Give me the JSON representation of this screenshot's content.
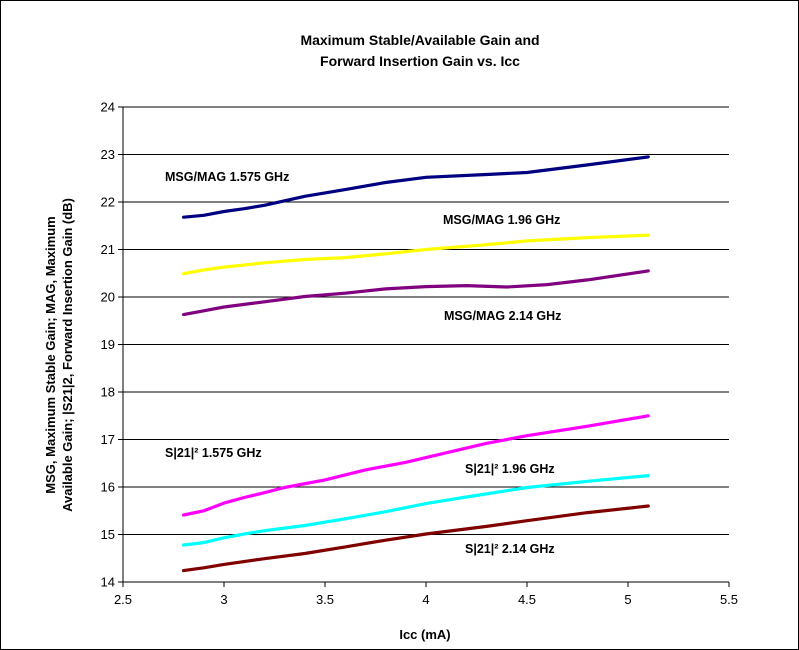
{
  "chart_data": {
    "type": "line",
    "title_lines": [
      "Maximum Stable/Available Gain and",
      "Forward Insertion Gain vs. Icc"
    ],
    "xlabel": "Icc (mA)",
    "ylabel_lines": [
      "MSG, Maximum Stable Gain; MAG, Maximum",
      "Available Gain; |S21|2, Forward Insertion Gain (dB)"
    ],
    "xlim": [
      2.5,
      5.5
    ],
    "ylim": [
      14,
      24
    ],
    "x_ticks": [
      "2.5",
      "3",
      "3.5",
      "4",
      "4.5",
      "5",
      "5.5"
    ],
    "y_ticks": [
      "14",
      "15",
      "16",
      "17",
      "18",
      "19",
      "20",
      "21",
      "22",
      "23",
      "24"
    ],
    "grid": "horizontal",
    "legend": "inline labels",
    "series": [
      {
        "name": "MSG/MAG 1.575 GHz",
        "color": "#000080",
        "points": [
          [
            2.8,
            21.68
          ],
          [
            2.9,
            21.72
          ],
          [
            3.0,
            21.8
          ],
          [
            3.1,
            21.86
          ],
          [
            3.2,
            21.93
          ],
          [
            3.4,
            22.12
          ],
          [
            3.6,
            22.26
          ],
          [
            3.8,
            22.41
          ],
          [
            4.0,
            22.52
          ],
          [
            4.3,
            22.58
          ],
          [
            4.5,
            22.62
          ],
          [
            4.8,
            22.78
          ],
          [
            5.1,
            22.95
          ]
        ]
      },
      {
        "name": "MSG/MAG 1.96 GHz",
        "color": "#ffff00",
        "points": [
          [
            2.8,
            20.49
          ],
          [
            2.9,
            20.57
          ],
          [
            3.0,
            20.63
          ],
          [
            3.2,
            20.72
          ],
          [
            3.4,
            20.79
          ],
          [
            3.6,
            20.83
          ],
          [
            3.8,
            20.91
          ],
          [
            4.0,
            21.0
          ],
          [
            4.3,
            21.1
          ],
          [
            4.5,
            21.18
          ],
          [
            4.8,
            21.25
          ],
          [
            5.1,
            21.3
          ]
        ]
      },
      {
        "name": "MSG/MAG 2.14 GHz",
        "color": "#800080",
        "points": [
          [
            2.8,
            19.63
          ],
          [
            2.9,
            19.71
          ],
          [
            3.0,
            19.79
          ],
          [
            3.2,
            19.9
          ],
          [
            3.4,
            20.01
          ],
          [
            3.6,
            20.08
          ],
          [
            3.8,
            20.17
          ],
          [
            4.0,
            20.22
          ],
          [
            4.2,
            20.24
          ],
          [
            4.4,
            20.21
          ],
          [
            4.6,
            20.26
          ],
          [
            4.8,
            20.36
          ],
          [
            5.1,
            20.55
          ]
        ]
      },
      {
        "name": "S|21|² 1.575 GHz",
        "color": "#ff00ff",
        "points": [
          [
            2.8,
            15.41
          ],
          [
            2.9,
            15.5
          ],
          [
            3.0,
            15.66
          ],
          [
            3.1,
            15.78
          ],
          [
            3.2,
            15.88
          ],
          [
            3.3,
            15.99
          ],
          [
            3.5,
            16.15
          ],
          [
            3.7,
            16.36
          ],
          [
            3.9,
            16.52
          ],
          [
            4.1,
            16.72
          ],
          [
            4.3,
            16.92
          ],
          [
            4.5,
            17.08
          ],
          [
            4.8,
            17.28
          ],
          [
            5.1,
            17.5
          ]
        ]
      },
      {
        "name": "S|21|² 1.96 GHz",
        "color": "#00ffff",
        "points": [
          [
            2.8,
            14.78
          ],
          [
            2.9,
            14.83
          ],
          [
            3.0,
            14.93
          ],
          [
            3.1,
            15.01
          ],
          [
            3.2,
            15.08
          ],
          [
            3.4,
            15.19
          ],
          [
            3.6,
            15.33
          ],
          [
            3.8,
            15.48
          ],
          [
            4.0,
            15.65
          ],
          [
            4.2,
            15.79
          ],
          [
            4.5,
            15.99
          ],
          [
            4.8,
            16.12
          ],
          [
            5.1,
            16.24
          ]
        ]
      },
      {
        "name": "S|21|² 2.14 GHz",
        "color": "#800000",
        "points": [
          [
            2.8,
            14.24
          ],
          [
            2.9,
            14.3
          ],
          [
            3.0,
            14.37
          ],
          [
            3.2,
            14.49
          ],
          [
            3.4,
            14.6
          ],
          [
            3.6,
            14.74
          ],
          [
            3.8,
            14.88
          ],
          [
            4.0,
            15.01
          ],
          [
            4.3,
            15.17
          ],
          [
            4.5,
            15.29
          ],
          [
            4.8,
            15.46
          ],
          [
            5.1,
            15.6
          ]
        ]
      }
    ]
  }
}
